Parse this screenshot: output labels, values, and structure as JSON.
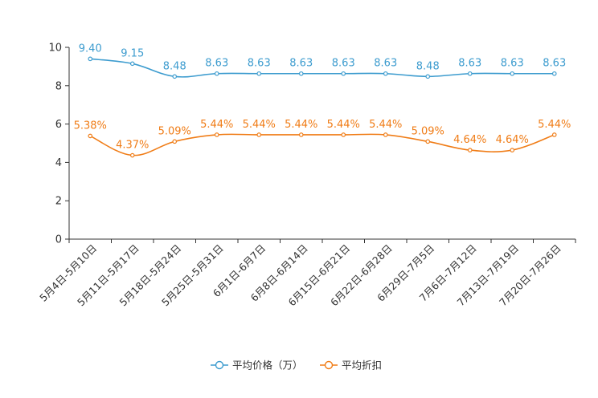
{
  "chart_data": {
    "type": "line",
    "categories": [
      "5月4日-5月10日",
      "5月11日-5月17日",
      "5月18日-5月24日",
      "5月25日-5月31日",
      "6月1日-6月7日",
      "6月8日-6月14日",
      "6月15日-6月21日",
      "6月22日-6月28日",
      "6月29日-7月5日",
      "7月6日-7月12日",
      "7月13日-7月19日",
      "7月20日-7月26日"
    ],
    "ylim": [
      0,
      10
    ],
    "yticks": [
      0,
      2,
      4,
      6,
      8,
      10
    ],
    "series": [
      {
        "name": "平均价格（万）",
        "color": "#3d9ccf",
        "values": [
          9.4,
          9.15,
          8.48,
          8.63,
          8.63,
          8.63,
          8.63,
          8.63,
          8.48,
          8.63,
          8.63,
          8.63
        ],
        "labels": [
          "9.40",
          "9.15",
          "8.48",
          "8.63",
          "8.63",
          "8.63",
          "8.63",
          "8.63",
          "8.48",
          "8.63",
          "8.63",
          "8.63"
        ]
      },
      {
        "name": "平均折扣",
        "color": "#f07c16",
        "values": [
          5.38,
          4.37,
          5.09,
          5.44,
          5.44,
          5.44,
          5.44,
          5.44,
          5.09,
          4.64,
          4.64,
          5.44
        ],
        "labels": [
          "5.38%",
          "4.37%",
          "5.09%",
          "5.44%",
          "5.44%",
          "5.44%",
          "5.44%",
          "5.44%",
          "5.09%",
          "4.64%",
          "4.64%",
          "5.44%"
        ]
      }
    ],
    "legend": {
      "position": "bottom-right"
    }
  }
}
